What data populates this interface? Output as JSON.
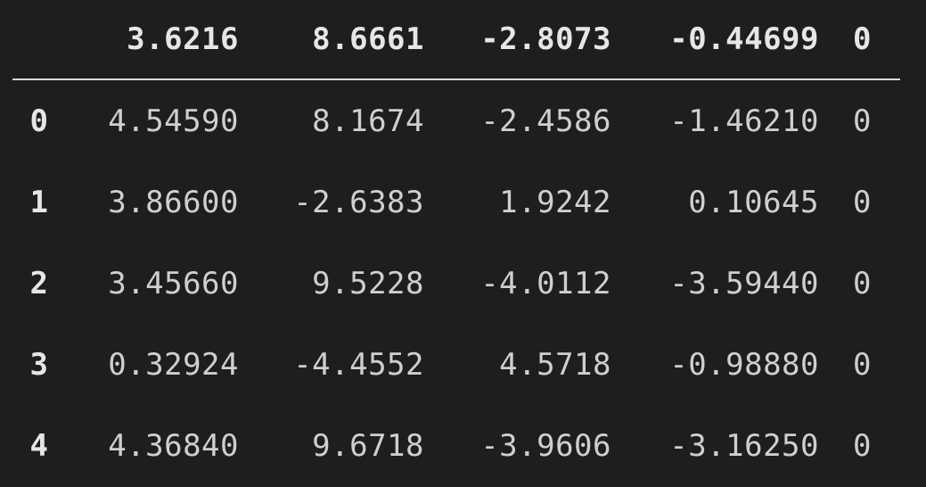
{
  "columns": [
    "",
    "3.6216",
    "8.6661",
    "-2.8073",
    "-0.44699",
    "0"
  ],
  "rows": [
    {
      "index": "0",
      "values": [
        "4.54590",
        "8.1674",
        "-2.4586",
        "-1.46210",
        "0"
      ]
    },
    {
      "index": "1",
      "values": [
        "3.86600",
        "-2.6383",
        "1.9242",
        "0.10645",
        "0"
      ]
    },
    {
      "index": "2",
      "values": [
        "3.45660",
        "9.5228",
        "-4.0112",
        "-3.59440",
        "0"
      ]
    },
    {
      "index": "3",
      "values": [
        "0.32924",
        "-4.4552",
        "4.5718",
        "-0.98880",
        "0"
      ]
    },
    {
      "index": "4",
      "values": [
        "4.36840",
        "9.6718",
        "-3.9606",
        "-3.16250",
        "0"
      ]
    }
  ],
  "colors": {
    "background": "#1e1e1e",
    "text": "#cfcfcf",
    "header_text": "#e6e6e6",
    "rule": "#d9d9d9"
  }
}
